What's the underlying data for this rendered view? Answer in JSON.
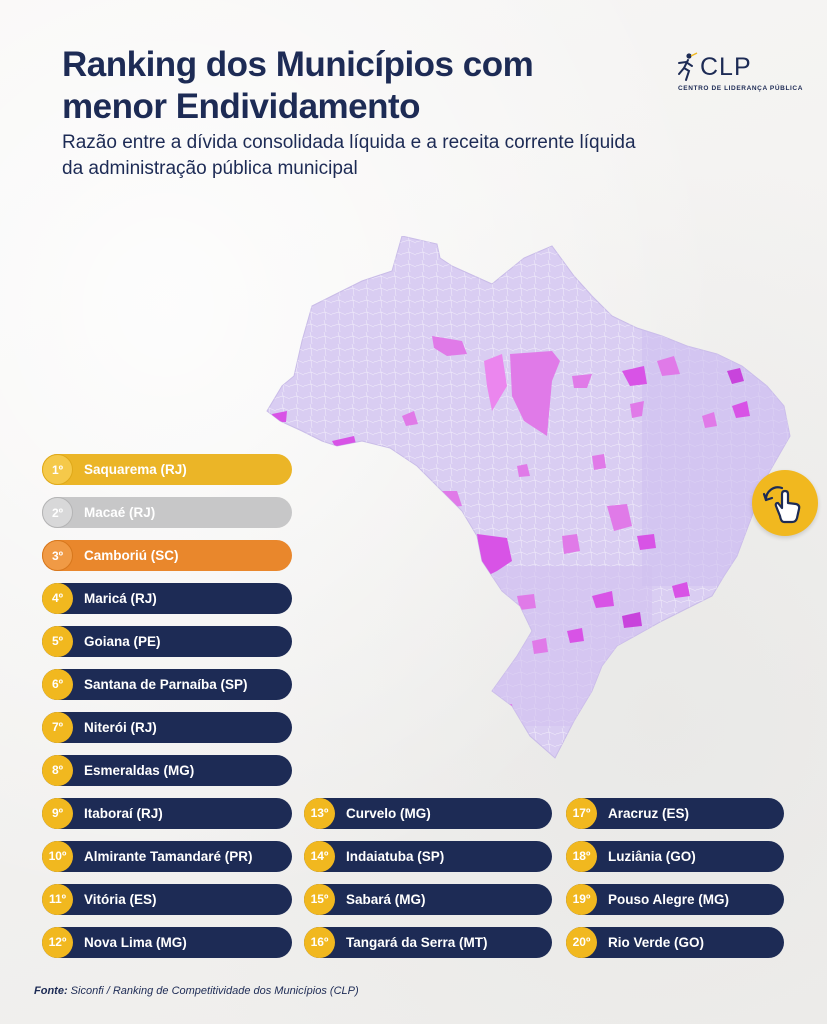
{
  "header": {
    "title_line1": "Ranking dos Municípios com",
    "title_line2": "menor Endividamento",
    "subtitle": "Razão entre a dívida consolidada líquida e a receita corrente líquida da administração pública municipal"
  },
  "logo": {
    "name": "CLP",
    "full_name": "CENTRO DE LIDERANÇA PÚBLICA",
    "icon": "runner-icon"
  },
  "colors": {
    "navy": "#1d2b55",
    "gold": "#ebb527",
    "silver": "#c7c7c8",
    "bronze": "#e9872c",
    "badge": "#f1b81f",
    "map_base": "#d9cdf2",
    "map_highlight": "#e070e8"
  },
  "swipe_button": {
    "icon": "swipe-hand-icon"
  },
  "ranking": [
    {
      "pos": "1º",
      "name": "Saquarema (RJ)"
    },
    {
      "pos": "2º",
      "name": "Macaé (RJ)"
    },
    {
      "pos": "3º",
      "name": "Camboriú (SC)"
    },
    {
      "pos": "4º",
      "name": "Maricá (RJ)"
    },
    {
      "pos": "5º",
      "name": "Goiana (PE)"
    },
    {
      "pos": "6º",
      "name": "Santana de Parnaíba (SP)"
    },
    {
      "pos": "7º",
      "name": "Niterói (RJ)"
    },
    {
      "pos": "8º",
      "name": "Esmeraldas (MG)"
    },
    {
      "pos": "9º",
      "name": "Itaboraí (RJ)"
    },
    {
      "pos": "10º",
      "name": "Almirante Tamandaré (PR)"
    },
    {
      "pos": "11º",
      "name": "Vitória (ES)"
    },
    {
      "pos": "12º",
      "name": "Nova Lima (MG)"
    },
    {
      "pos": "13º",
      "name": "Curvelo (MG)"
    },
    {
      "pos": "14º",
      "name": "Indaiatuba (SP)"
    },
    {
      "pos": "15º",
      "name": "Sabará (MG)"
    },
    {
      "pos": "16º",
      "name": "Tangará da Serra (MT)"
    },
    {
      "pos": "17º",
      "name": "Aracruz (ES)"
    },
    {
      "pos": "18º",
      "name": "Luziânia (GO)"
    },
    {
      "pos": "19º",
      "name": "Pouso Alegre (MG)"
    },
    {
      "pos": "20º",
      "name": "Rio Verde (GO)"
    }
  ],
  "source": {
    "label": "Fonte:",
    "text": "Siconfi / Ranking de Competitividade dos Municípios (CLP)"
  }
}
